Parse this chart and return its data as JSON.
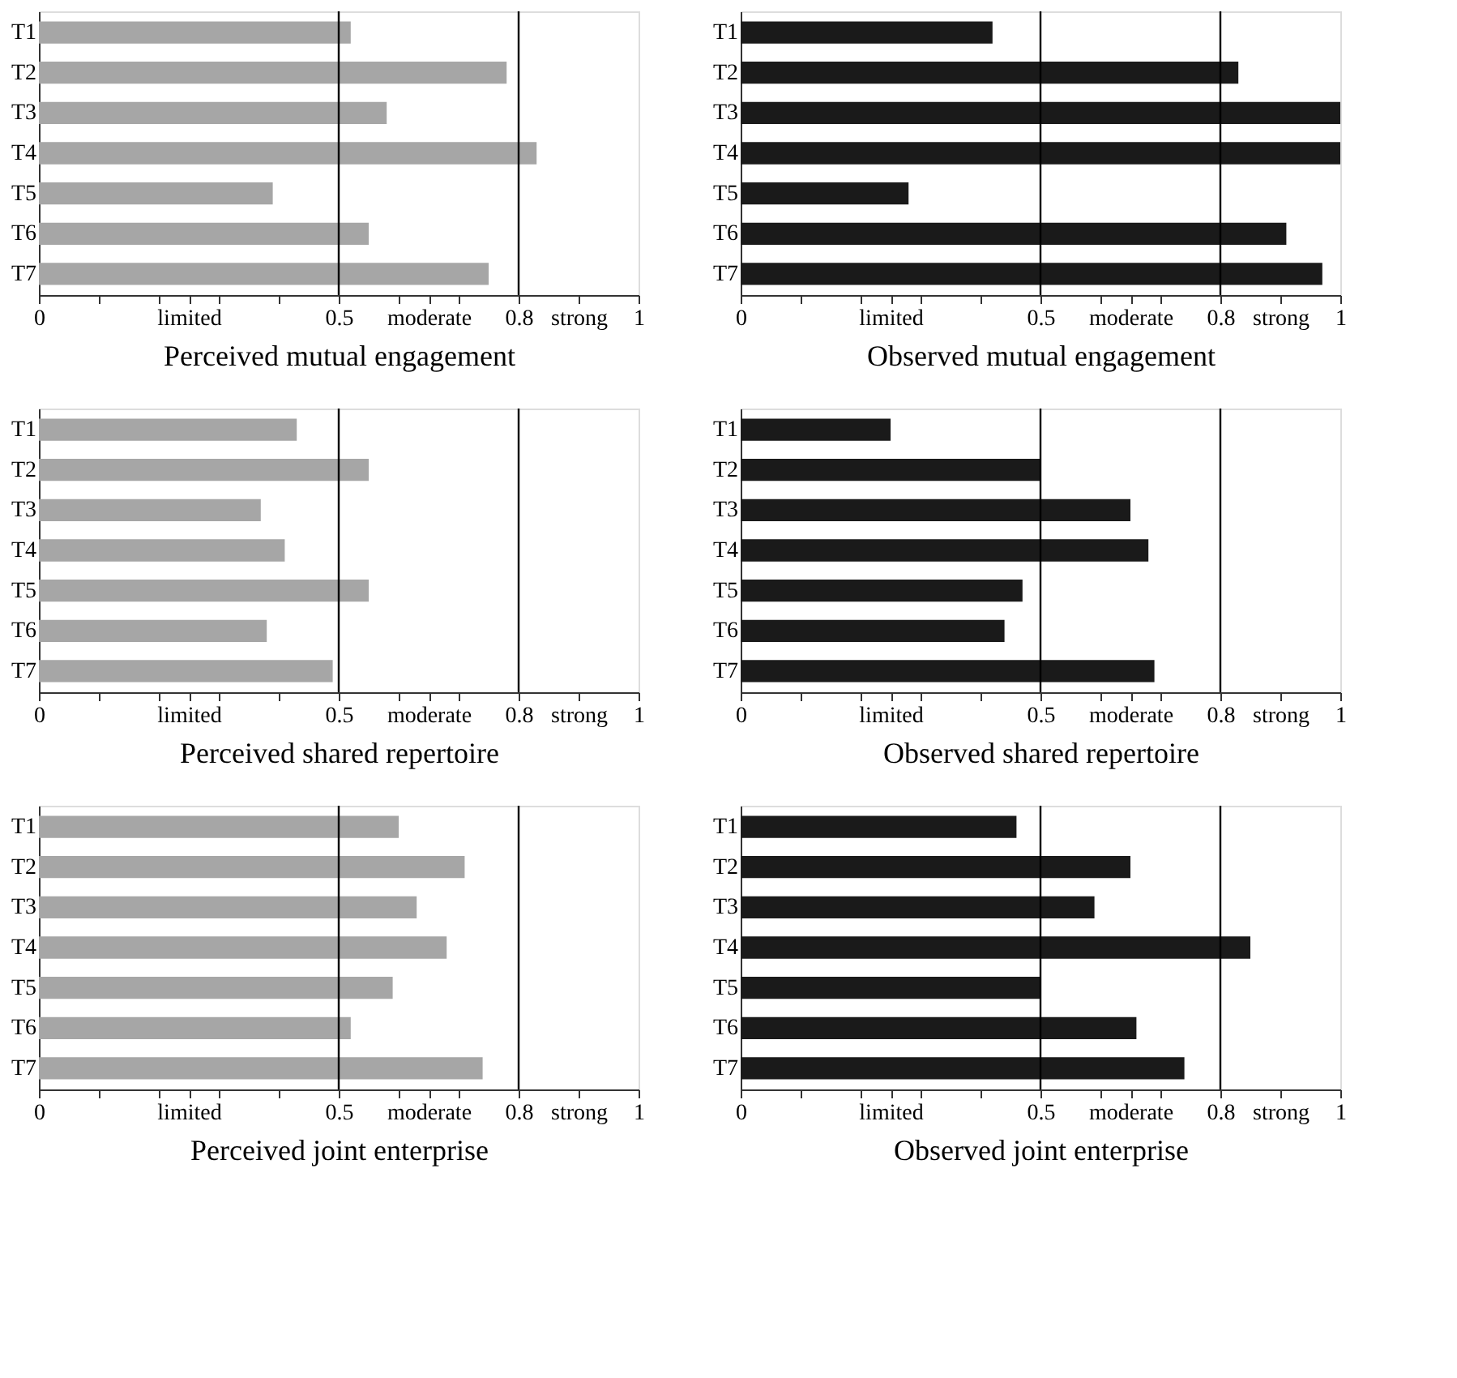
{
  "chart_data": [
    {
      "type": "bar",
      "orientation": "horizontal",
      "xlabel": "Perceived mutual engagement",
      "categories": [
        "T1",
        "T2",
        "T3",
        "T4",
        "T5",
        "T6",
        "T7"
      ],
      "series": [
        {
          "color": "#a6a6a6",
          "values": [
            0.52,
            0.78,
            0.58,
            0.83,
            0.39,
            0.55,
            0.75
          ]
        }
      ],
      "xlim": [
        0,
        1
      ],
      "xticks": [
        0,
        {
          "value": 0.1,
          "label": null
        },
        {
          "value": 0.2,
          "label": null
        },
        {
          "value": 0.25,
          "label": "limited"
        },
        {
          "value": 0.3,
          "label": null
        },
        {
          "value": 0.4,
          "label": null
        },
        0.5,
        {
          "value": 0.6,
          "label": null
        },
        {
          "value": 0.65,
          "label": "moderate"
        },
        {
          "value": 0.7,
          "label": null
        },
        0.8,
        {
          "value": 0.9,
          "label": "strong"
        },
        1
      ],
      "ref_lines": [
        {
          "axis": "x",
          "value": 0.5,
          "color": "#000000"
        },
        {
          "axis": "x",
          "value": 0.8,
          "color": "#000000"
        }
      ],
      "grid": false
    },
    {
      "type": "bar",
      "orientation": "horizontal",
      "xlabel": "Observed mutual engagement",
      "categories": [
        "T1",
        "T2",
        "T3",
        "T4",
        "T5",
        "T6",
        "T7"
      ],
      "series": [
        {
          "color": "#1a1a1a",
          "values": [
            0.42,
            0.83,
            1.0,
            1.0,
            0.28,
            0.91,
            0.97
          ]
        }
      ],
      "xlim": [
        0,
        1
      ],
      "xticks": [
        0,
        {
          "value": 0.1,
          "label": null
        },
        {
          "value": 0.2,
          "label": null
        },
        {
          "value": 0.25,
          "label": "limited"
        },
        {
          "value": 0.3,
          "label": null
        },
        {
          "value": 0.4,
          "label": null
        },
        0.5,
        {
          "value": 0.6,
          "label": null
        },
        {
          "value": 0.65,
          "label": "moderate"
        },
        {
          "value": 0.7,
          "label": null
        },
        0.8,
        {
          "value": 0.9,
          "label": "strong"
        },
        1
      ],
      "ref_lines": [
        {
          "axis": "x",
          "value": 0.5,
          "color": "#000000"
        },
        {
          "axis": "x",
          "value": 0.8,
          "color": "#000000"
        }
      ],
      "grid": false
    },
    {
      "type": "bar",
      "orientation": "horizontal",
      "xlabel": "Perceived shared repertoire",
      "categories": [
        "T1",
        "T2",
        "T3",
        "T4",
        "T5",
        "T6",
        "T7"
      ],
      "series": [
        {
          "color": "#a6a6a6",
          "values": [
            0.43,
            0.55,
            0.37,
            0.41,
            0.55,
            0.38,
            0.49
          ]
        }
      ],
      "xlim": [
        0,
        1
      ],
      "xticks": [
        0,
        {
          "value": 0.1,
          "label": null
        },
        {
          "value": 0.2,
          "label": null
        },
        {
          "value": 0.25,
          "label": "limited"
        },
        {
          "value": 0.3,
          "label": null
        },
        {
          "value": 0.4,
          "label": null
        },
        0.5,
        {
          "value": 0.6,
          "label": null
        },
        {
          "value": 0.65,
          "label": "moderate"
        },
        {
          "value": 0.7,
          "label": null
        },
        0.8,
        {
          "value": 0.9,
          "label": "strong"
        },
        1
      ],
      "ref_lines": [
        {
          "axis": "x",
          "value": 0.5,
          "color": "#000000"
        },
        {
          "axis": "x",
          "value": 0.8,
          "color": "#000000"
        }
      ],
      "grid": false
    },
    {
      "type": "bar",
      "orientation": "horizontal",
      "xlabel": "Observed shared repertoire",
      "categories": [
        "T1",
        "T2",
        "T3",
        "T4",
        "T5",
        "T6",
        "T7"
      ],
      "series": [
        {
          "color": "#1a1a1a",
          "values": [
            0.25,
            0.5,
            0.65,
            0.68,
            0.47,
            0.44,
            0.69
          ]
        }
      ],
      "xlim": [
        0,
        1
      ],
      "xticks": [
        0,
        {
          "value": 0.1,
          "label": null
        },
        {
          "value": 0.2,
          "label": null
        },
        {
          "value": 0.25,
          "label": "limited"
        },
        {
          "value": 0.3,
          "label": null
        },
        {
          "value": 0.4,
          "label": null
        },
        0.5,
        {
          "value": 0.6,
          "label": null
        },
        {
          "value": 0.65,
          "label": "moderate"
        },
        {
          "value": 0.7,
          "label": null
        },
        0.8,
        {
          "value": 0.9,
          "label": "strong"
        },
        1
      ],
      "ref_lines": [
        {
          "axis": "x",
          "value": 0.5,
          "color": "#000000"
        },
        {
          "axis": "x",
          "value": 0.8,
          "color": "#000000"
        }
      ],
      "grid": false
    },
    {
      "type": "bar",
      "orientation": "horizontal",
      "xlabel": "Perceived joint enterprise",
      "categories": [
        "T1",
        "T2",
        "T3",
        "T4",
        "T5",
        "T6",
        "T7"
      ],
      "series": [
        {
          "color": "#a6a6a6",
          "values": [
            0.6,
            0.71,
            0.63,
            0.68,
            0.59,
            0.52,
            0.74
          ]
        }
      ],
      "xlim": [
        0,
        1
      ],
      "xticks": [
        0,
        {
          "value": 0.1,
          "label": null
        },
        {
          "value": 0.2,
          "label": null
        },
        {
          "value": 0.25,
          "label": "limited"
        },
        {
          "value": 0.3,
          "label": null
        },
        {
          "value": 0.4,
          "label": null
        },
        0.5,
        {
          "value": 0.6,
          "label": null
        },
        {
          "value": 0.65,
          "label": "moderate"
        },
        {
          "value": 0.7,
          "label": null
        },
        0.8,
        {
          "value": 0.9,
          "label": "strong"
        },
        1
      ],
      "ref_lines": [
        {
          "axis": "x",
          "value": 0.5,
          "color": "#000000"
        },
        {
          "axis": "x",
          "value": 0.8,
          "color": "#000000"
        }
      ],
      "grid": false
    },
    {
      "type": "bar",
      "orientation": "horizontal",
      "xlabel": "Observed joint enterprise",
      "categories": [
        "T1",
        "T2",
        "T3",
        "T4",
        "T5",
        "T6",
        "T7"
      ],
      "series": [
        {
          "color": "#1a1a1a",
          "values": [
            0.46,
            0.65,
            0.59,
            0.85,
            0.5,
            0.66,
            0.74
          ]
        }
      ],
      "xlim": [
        0,
        1
      ],
      "xticks": [
        0,
        {
          "value": 0.1,
          "label": null
        },
        {
          "value": 0.2,
          "label": null
        },
        {
          "value": 0.25,
          "label": "limited"
        },
        {
          "value": 0.3,
          "label": null
        },
        {
          "value": 0.4,
          "label": null
        },
        0.5,
        {
          "value": 0.6,
          "label": null
        },
        {
          "value": 0.65,
          "label": "moderate"
        },
        {
          "value": 0.7,
          "label": null
        },
        0.8,
        {
          "value": 0.9,
          "label": "strong"
        },
        1
      ],
      "ref_lines": [
        {
          "axis": "x",
          "value": 0.5,
          "color": "#000000"
        },
        {
          "axis": "x",
          "value": 0.8,
          "color": "#000000"
        }
      ],
      "grid": false
    }
  ]
}
